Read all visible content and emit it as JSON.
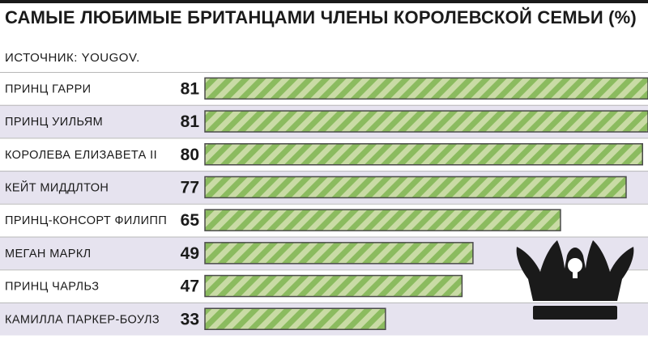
{
  "title": "САМЫЕ ЛЮБИМЫЕ БРИТАНЦАМИ ЧЛЕНЫ КОРОЛЕВСКОЙ СЕМЬИ (%)",
  "source": "ИСТОЧНИК:  YOUGOV.",
  "colors": {
    "row_alt": "#e6e3ef",
    "stripe_light": "#c9dba5",
    "stripe_dark": "#8bbb5f",
    "bar_border": "#4a4a4a",
    "crown": "#1a1a1a"
  },
  "chart_data": {
    "type": "bar",
    "orientation": "horizontal",
    "categories": [
      "ПРИНЦ ГАРРИ",
      "ПРИНЦ УИЛЬЯМ",
      "КОРОЛЕВА ЕЛИЗАВЕТА II",
      "КЕЙТ МИДДЛТОН",
      "ПРИНЦ-КОНСОРТ ФИЛИПП",
      "МЕГАН МАРКЛ",
      "ПРИНЦ ЧАРЛЬЗ",
      "КАМИЛЛА ПАРКЕР-БОУЛЗ"
    ],
    "values": [
      81,
      81,
      80,
      77,
      65,
      49,
      47,
      33
    ],
    "title": "САМЫЕ ЛЮБИМЫЕ БРИТАНЦАМИ ЧЛЕНЫ КОРОЛЕВСКОЙ СЕМЬИ (%)",
    "xlabel": "",
    "ylabel": "",
    "xlim": [
      0,
      81
    ],
    "grid": false,
    "legend": "none"
  }
}
